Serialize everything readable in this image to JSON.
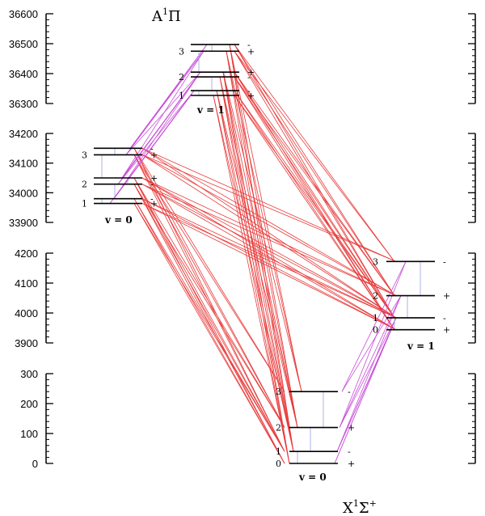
{
  "diagram": {
    "upper_state_label": {
      "main": "A",
      "sup": "1",
      "rest": "Π"
    },
    "lower_state_label": {
      "main": "X",
      "sup": "1",
      "rest": "Σ",
      "sup2": "+"
    },
    "axis_panels": [
      {
        "id": "A-v1",
        "ticks": [
          36300,
          36400,
          36500,
          36600
        ]
      },
      {
        "id": "A-v0",
        "ticks": [
          33900,
          34000,
          34100,
          34200
        ]
      },
      {
        "id": "X-v1",
        "ticks": [
          3900,
          4000,
          4100,
          4200
        ]
      },
      {
        "id": "X-v0",
        "ticks": [
          0,
          100,
          200,
          300
        ]
      }
    ],
    "vib_groups": [
      {
        "id": "A-v0",
        "state": "A",
        "label": "v = 0",
        "levels": [
          {
            "J": "1",
            "energy": 33964,
            "parity": "+"
          },
          {
            "J": "",
            "energy": 33980,
            "parity": "-"
          },
          {
            "J": "2",
            "energy": 34029,
            "parity": "-"
          },
          {
            "J": "",
            "energy": 34050,
            "parity": "+"
          },
          {
            "J": "3",
            "energy": 34128,
            "parity": "+"
          },
          {
            "J": "",
            "energy": 34150,
            "parity": "-"
          }
        ]
      },
      {
        "id": "A-v1",
        "state": "A",
        "label": "v = 1",
        "levels": [
          {
            "J": "1",
            "energy": 36327,
            "parity": "+"
          },
          {
            "J": "",
            "energy": 36343,
            "parity": "-"
          },
          {
            "J": "2",
            "energy": 36389,
            "parity": "-"
          },
          {
            "J": "",
            "energy": 36405,
            "parity": "+"
          },
          {
            "J": "3",
            "energy": 36475,
            "parity": "+"
          },
          {
            "J": "",
            "energy": 36497,
            "parity": "-"
          }
        ]
      },
      {
        "id": "X-v0",
        "state": "X",
        "label": "v = 0",
        "levels": [
          {
            "J": "0",
            "energy": 0,
            "parity": "+"
          },
          {
            "J": "1",
            "energy": 40,
            "parity": "-"
          },
          {
            "J": "2",
            "energy": 120,
            "parity": "+"
          },
          {
            "J": "3",
            "energy": 240,
            "parity": "-"
          }
        ]
      },
      {
        "id": "X-v1",
        "state": "X",
        "label": "v = 1",
        "levels": [
          {
            "J": "0",
            "energy": 3944,
            "parity": "+"
          },
          {
            "J": "1",
            "energy": 3984,
            "parity": "-"
          },
          {
            "J": "2",
            "energy": 4058,
            "parity": "+"
          },
          {
            "J": "3",
            "energy": 4172,
            "parity": "-"
          }
        ]
      }
    ]
  },
  "colors": {
    "red_lines": "#e83a3a",
    "magenta_lines": "#c84ed8",
    "blue_lines": "#9aa0e0",
    "levels": "#000000"
  }
}
